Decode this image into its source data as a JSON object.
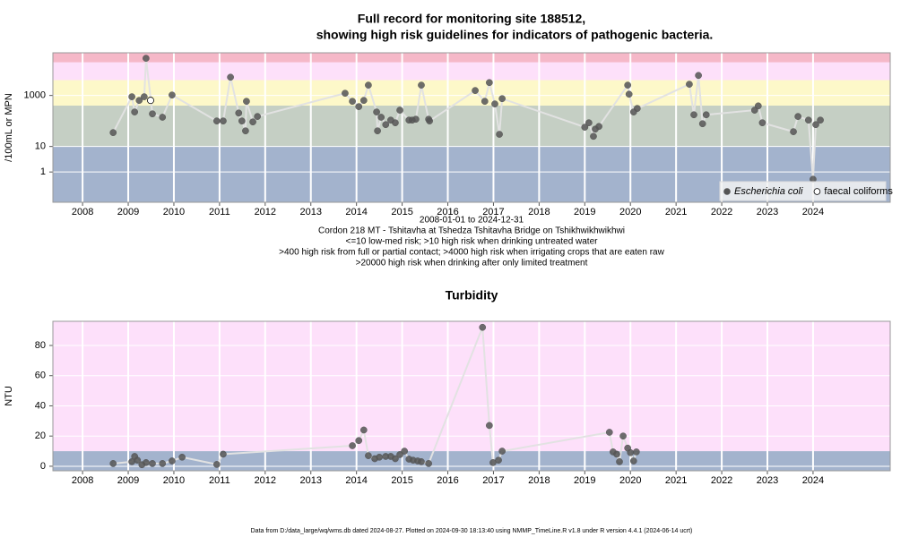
{
  "chart_data": [
    {
      "type": "scatter",
      "title": "Full record for monitoring site 188512,",
      "subtitle": "showing high risk guidelines for indicators of pathogenic bacteria.",
      "y_label": "/100mL or MPN",
      "caption": [
        "2008-01-01 to 2024-12-31",
        "Cordon 218 MT - Tshitavha at Tshedza Tshitavha Bridge on Tshikhwikhwikhwi",
        "<=10 low-med risk; >10 high risk when drinking untreated water",
        ">400 high risk from full or partial contact; >4000 high risk when irrigating crops that are eaten raw",
        ">20000 high risk when drinking after only limited treatment"
      ],
      "log_y": true,
      "grid": true,
      "legend": "bottom-right",
      "xlim": [
        2007.35,
        2025.69
      ],
      "xticks": [
        2008,
        2009,
        2010,
        2011,
        2012,
        2013,
        2014,
        2015,
        2016,
        2017,
        2018,
        2019,
        2020,
        2021,
        2022,
        2023,
        2024
      ],
      "ylim": [
        0.065,
        47000
      ],
      "yticks": [
        1,
        10,
        1000
      ],
      "thresholds": [
        10,
        400,
        4000,
        20000
      ],
      "band_colors": [
        "#a3b3cd",
        "#c5cfc4",
        "#fdf8c9",
        "#fde0fa",
        "#f5b8c8"
      ],
      "series": [
        {
          "name": "Escherichia coli",
          "color": "#555555",
          "marker": "filled",
          "line_color": "#e2e2e2",
          "x": [
            2008.67,
            2009.08,
            2009.14,
            2009.24,
            2009.35,
            2009.39,
            2009.53,
            2009.75,
            2009.96,
            2010.94,
            2011.08,
            2011.24,
            2011.42,
            2011.49,
            2011.57,
            2011.59,
            2011.73,
            2011.83,
            2013.75,
            2013.91,
            2014.05,
            2014.16,
            2014.26,
            2014.44,
            2014.46,
            2014.54,
            2014.64,
            2014.75,
            2014.85,
            2014.95,
            2015.15,
            2015.22,
            2015.3,
            2015.42,
            2015.58,
            2015.6,
            2016.6,
            2016.81,
            2016.91,
            2017.03,
            2017.13,
            2017.19,
            2019.0,
            2019.09,
            2019.19,
            2019.23,
            2019.31,
            2019.94,
            2019.97,
            2020.07,
            2020.15,
            2021.29,
            2021.39,
            2021.49,
            2021.58,
            2021.66,
            2022.72,
            2022.8,
            2022.89,
            2023.57,
            2023.67,
            2023.9,
            2024.0,
            2024.06,
            2024.16
          ],
          "values": [
            35,
            890,
            225,
            640,
            890,
            28700,
            190,
            140,
            1040,
            100,
            100,
            5200,
            205,
            100,
            41,
            590,
            92,
            150,
            1220,
            590,
            365,
            640,
            2540,
            225,
            41,
            140,
            72,
            108,
            85,
            265,
            108,
            108,
            117,
            2540,
            117,
            100,
            1560,
            590,
            3200,
            465,
            30,
            750,
            57,
            85,
            25,
            48,
            61,
            2540,
            1120,
            225,
            310,
            2750,
            175,
            6100,
            78,
            175,
            265,
            390,
            85,
            38,
            150,
            108,
            0.52,
            72,
            108
          ]
        },
        {
          "name": "faecal coliforms",
          "color": "#555555",
          "marker": "open",
          "x": [
            2009.49
          ],
          "values": [
            640
          ]
        }
      ]
    },
    {
      "type": "scatter",
      "title": "Turbidity",
      "y_label": "NTU",
      "log_y": false,
      "grid": true,
      "xlim": [
        2007.35,
        2025.69
      ],
      "xticks": [
        2008,
        2009,
        2010,
        2011,
        2012,
        2013,
        2014,
        2015,
        2016,
        2017,
        2018,
        2019,
        2020,
        2021,
        2022,
        2023,
        2024
      ],
      "ylim": [
        -3,
        96
      ],
      "yticks": [
        0,
        20,
        40,
        60,
        80
      ],
      "thresholds": [
        10
      ],
      "band_colors": [
        "#a3b3cd",
        "#fde0fa"
      ],
      "series": [
        {
          "color": "#555555",
          "marker": "filled",
          "line_color": "#e2e2e2",
          "x": [
            2008.67,
            2009.08,
            2009.14,
            2009.2,
            2009.3,
            2009.39,
            2009.53,
            2009.75,
            2009.96,
            2010.18,
            2010.94,
            2011.08,
            2013.91,
            2014.05,
            2014.16,
            2014.26,
            2014.4,
            2014.5,
            2014.64,
            2014.75,
            2014.85,
            2014.95,
            2015.05,
            2015.15,
            2015.24,
            2015.34,
            2015.42,
            2015.58,
            2016.76,
            2016.91,
            2016.99,
            2017.11,
            2017.19,
            2019.54,
            2019.62,
            2019.7,
            2019.76,
            2019.84,
            2019.94,
            2020.0,
            2020.07,
            2020.13
          ],
          "values": [
            1.8,
            3,
            6.5,
            4,
            1,
            2.4,
            1.8,
            1.8,
            3.5,
            6,
            1.2,
            8,
            13.6,
            17,
            24,
            7,
            5,
            6,
            6.5,
            6.5,
            5,
            7.7,
            10,
            4.7,
            4,
            3.5,
            3,
            1.8,
            92,
            27,
            2.4,
            4,
            10,
            22.5,
            9.5,
            8,
            3,
            20,
            12,
            9,
            3.5,
            9.5
          ]
        }
      ]
    }
  ],
  "footer": "Data from D:/data_large/wq/wms.db dated 2024-08-27. Plotted on 2024-09-30 18:13:40 using NMMP_TimeLine.R v1.8 under R version 4.4.1 (2024-06-14 ucrt)"
}
